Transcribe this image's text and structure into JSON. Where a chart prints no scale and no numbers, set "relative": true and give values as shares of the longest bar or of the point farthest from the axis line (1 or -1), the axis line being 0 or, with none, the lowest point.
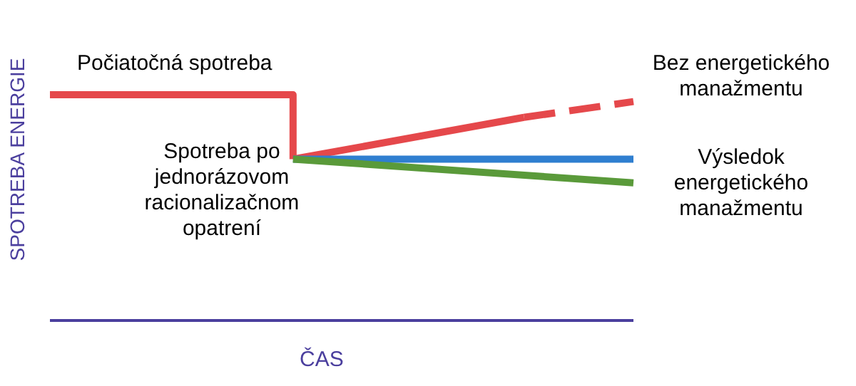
{
  "chart_data": {
    "type": "line",
    "relative": true,
    "xlabel": "ČAS",
    "ylabel": "SPOTREBA ENERGIE",
    "categories": [
      null,
      null,
      null,
      null,
      null,
      null,
      null,
      null,
      null,
      null,
      null,
      null,
      null,
      null,
      null,
      null,
      null,
      null,
      null,
      null,
      null,
      null,
      null,
      null,
      null,
      null,
      null,
      null,
      null,
      null,
      null,
      null,
      null,
      null,
      null,
      null,
      null,
      null,
      null,
      null,
      null,
      null,
      null,
      null,
      null,
      null,
      null,
      null,
      null
    ],
    "series": [
      {
        "type": "step",
        "color": "#e5484b",
        "values": [
          1,
          null,
          null,
          null,
          null,
          null,
          null,
          null,
          null,
          null,
          null,
          null,
          null,
          null,
          null,
          null,
          null,
          null,
          null,
          null,
          0.715,
          null,
          null,
          null,
          null,
          null,
          null,
          null,
          null,
          null,
          null,
          null,
          null,
          null,
          null,
          null,
          null,
          null,
          null,
          null,
          null,
          null,
          null,
          null,
          null,
          null,
          null,
          null,
          null
        ]
      },
      {
        "color": "#e5484b",
        "values": [
          null,
          null,
          null,
          null,
          null,
          null,
          null,
          null,
          null,
          null,
          null,
          null,
          null,
          null,
          null,
          null,
          null,
          null,
          null,
          null,
          0.715,
          null,
          null,
          null,
          null,
          null,
          null,
          null,
          null,
          null,
          null,
          null,
          null,
          null,
          null,
          null,
          null,
          null,
          null,
          0.9,
          null,
          null,
          null,
          null,
          null,
          null,
          null,
          null,
          null
        ]
      },
      {
        "color": "#e5484b",
        "line_style": "dashed",
        "values": [
          null,
          null,
          null,
          null,
          null,
          null,
          null,
          null,
          null,
          null,
          null,
          null,
          null,
          null,
          null,
          null,
          null,
          null,
          null,
          null,
          null,
          null,
          null,
          null,
          null,
          null,
          null,
          null,
          null,
          null,
          null,
          null,
          null,
          null,
          null,
          null,
          null,
          null,
          null,
          0.9,
          null,
          null,
          null,
          null,
          null,
          null,
          null,
          null,
          0.97
        ]
      },
      {
        "color": "#2f7fd0",
        "values": [
          null,
          null,
          null,
          null,
          null,
          null,
          null,
          null,
          null,
          null,
          null,
          null,
          null,
          null,
          null,
          null,
          null,
          null,
          null,
          null,
          0.715,
          null,
          null,
          null,
          null,
          null,
          null,
          null,
          null,
          null,
          null,
          null,
          null,
          null,
          null,
          null,
          null,
          null,
          null,
          null,
          null,
          null,
          null,
          null,
          null,
          null,
          null,
          null,
          0.715
        ]
      },
      {
        "color": "#5a9a3a",
        "values": [
          null,
          null,
          null,
          null,
          null,
          null,
          null,
          null,
          null,
          null,
          null,
          null,
          null,
          null,
          null,
          null,
          null,
          null,
          null,
          null,
          0.715,
          null,
          null,
          null,
          null,
          null,
          null,
          null,
          null,
          null,
          null,
          null,
          null,
          null,
          null,
          null,
          null,
          null,
          null,
          null,
          null,
          null,
          null,
          null,
          null,
          null,
          null,
          null,
          0.61
        ]
      }
    ],
    "annotations": [
      "Počiatočná spotreba",
      "Bez energetického manažmentu",
      "Spotreba po jednorázovom racionalizačnom opatrení",
      "Výsledok energetického manažmentu"
    ],
    "grid": false,
    "marker": "none",
    "line_style": "solid"
  }
}
